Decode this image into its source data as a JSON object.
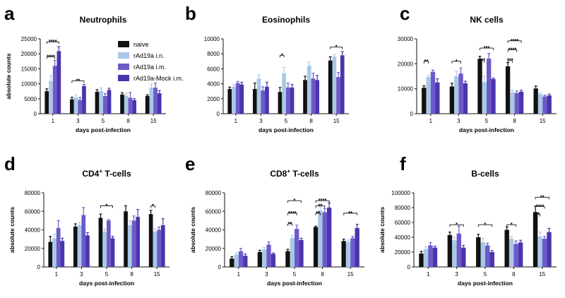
{
  "legend": [
    {
      "name": "naive",
      "color": "#111111"
    },
    {
      "name": "rAd19a i.n.",
      "color": "#a9c8e8"
    },
    {
      "name": "rAd19a i.m.",
      "color": "#6e59c9"
    },
    {
      "name": "rAd19a-Mock i.m.",
      "color": "#4b34ad"
    }
  ],
  "chart_data": [
    {
      "letter": "a",
      "title": "Neutrophils",
      "title_sup": "",
      "title_tail": "",
      "type": "bar",
      "xlabel": "days post-infection",
      "ylabel": "absolute counts",
      "categories": [
        "1",
        "3",
        "5",
        "8",
        "15"
      ],
      "ylim": [
        0,
        25000
      ],
      "yticks": [
        [
          "0",
          0
        ],
        [
          "5000",
          5000
        ],
        [
          "10000",
          10000
        ],
        [
          "15000",
          15000
        ],
        [
          "20000",
          20000
        ],
        [
          "25000",
          25000
        ]
      ],
      "series": [
        {
          "name": "naive",
          "values": [
            7500,
            4800,
            7300,
            6400,
            5900
          ],
          "errors": [
            800,
            700,
            700,
            600,
            400
          ]
        },
        {
          "name": "rAd19a i.n.",
          "values": [
            10900,
            5400,
            7600,
            6000,
            8700
          ],
          "errors": [
            1800,
            900,
            1000,
            800,
            1200
          ]
        },
        {
          "name": "rAd19a i.m.",
          "values": [
            16000,
            4600,
            5900,
            5300,
            8700
          ],
          "errors": [
            1800,
            800,
            800,
            1800,
            1500
          ]
        },
        {
          "name": "rAd19a-Mock i.m.",
          "values": [
            20900,
            9200,
            7900,
            4500,
            6800
          ],
          "errors": [
            1500,
            500,
            600,
            500,
            900
          ]
        }
      ],
      "significance": [
        {
          "from": 0,
          "to": 3,
          "group": 0,
          "y": 24000,
          "label": "****"
        },
        {
          "from": 0,
          "to": 2,
          "group": 0,
          "y": 19000,
          "label": "****"
        },
        {
          "from": 0,
          "to": 3,
          "group": 1,
          "y": 11000,
          "label": "**"
        }
      ]
    },
    {
      "letter": "b",
      "title": "Eosinophils",
      "title_sup": "",
      "title_tail": "",
      "type": "bar",
      "xlabel": "days post-infection",
      "ylabel": "",
      "categories": [
        "1",
        "3",
        "5",
        "8",
        "15"
      ],
      "ylim": [
        0,
        10000
      ],
      "yticks": [
        [
          "0",
          0
        ],
        [
          "2000",
          2000
        ],
        [
          "4000",
          4000
        ],
        [
          "6000",
          6000
        ],
        [
          "8000",
          8000
        ],
        [
          "10000",
          10000
        ]
      ],
      "series": [
        {
          "name": "naive",
          "values": [
            3300,
            3300,
            2900,
            4500,
            7100
          ],
          "errors": [
            250,
            800,
            600,
            500,
            500
          ]
        },
        {
          "name": "rAd19a i.n.",
          "values": [
            3600,
            4700,
            5400,
            6400,
            7600
          ],
          "errors": [
            300,
            500,
            800,
            500,
            300
          ]
        },
        {
          "name": "rAd19a i.m.",
          "values": [
            4100,
            3100,
            3500,
            4700,
            4900
          ],
          "errors": [
            200,
            500,
            600,
            700,
            600
          ]
        },
        {
          "name": "rAd19a-Mock i.m.",
          "values": [
            3900,
            3600,
            3500,
            4500,
            7800
          ],
          "errors": [
            300,
            600,
            400,
            600,
            500
          ]
        }
      ],
      "significance": [
        {
          "from": 0,
          "to": 1,
          "group": 2,
          "y": 7800,
          "label": "*"
        },
        {
          "from": 0,
          "to": 3,
          "group": 4,
          "y": 8900,
          "label": "*"
        }
      ]
    },
    {
      "letter": "c",
      "title": "NK cells",
      "title_sup": "",
      "title_tail": "",
      "type": "bar",
      "xlabel": "days post-infection",
      "ylabel": "",
      "categories": [
        "1",
        "3",
        "5",
        "8",
        "15"
      ],
      "ylim": [
        0,
        30000
      ],
      "yticks": [
        [
          "0",
          0
        ],
        [
          "10000",
          10000
        ],
        [
          "20000",
          20000
        ],
        [
          "30000",
          30000
        ]
      ],
      "series": [
        {
          "name": "naive",
          "values": [
            10400,
            10900,
            22000,
            19000,
            10100
          ],
          "errors": [
            800,
            1300,
            1000,
            1500,
            1000
          ]
        },
        {
          "name": "rAd19a i.n.",
          "values": [
            14700,
            15000,
            12600,
            8500,
            7800
          ],
          "errors": [
            700,
            2000,
            2400,
            1000,
            500
          ]
        },
        {
          "name": "rAd19a i.m.",
          "values": [
            16800,
            16100,
            22100,
            8300,
            6900
          ],
          "errors": [
            700,
            2200,
            2000,
            800,
            500
          ]
        },
        {
          "name": "rAd19a-Mock i.m.",
          "values": [
            12500,
            12200,
            13900,
            8800,
            7300
          ],
          "errors": [
            1500,
            800,
            400,
            600,
            500
          ]
        }
      ],
      "significance": [
        {
          "from": 0,
          "to": 1,
          "group": 0,
          "y": 21000,
          "label": "**"
        },
        {
          "from": 0,
          "to": 2,
          "group": 1,
          "y": 21000,
          "label": "*"
        },
        {
          "from": 0,
          "to": 1,
          "group": 2,
          "y": 21300,
          "label": "***"
        },
        {
          "from": 0,
          "to": 3,
          "group": 2,
          "y": 26300,
          "label": "***"
        },
        {
          "from": 0,
          "to": 1,
          "group": 3,
          "y": 21300,
          "label": "***"
        },
        {
          "from": 0,
          "to": 2,
          "group": 3,
          "y": 25600,
          "label": "****"
        },
        {
          "from": 0,
          "to": 3,
          "group": 3,
          "y": 29200,
          "label": "****"
        }
      ]
    },
    {
      "letter": "d",
      "title": "CD4",
      "title_sup": "+",
      "title_tail": " T-cells",
      "type": "bar",
      "xlabel": "days post-infection",
      "ylabel": "absolute counts",
      "categories": [
        "1",
        "3",
        "5",
        "8",
        "15"
      ],
      "ylim": [
        0,
        80000
      ],
      "yticks": [
        [
          "0",
          0
        ],
        [
          "20000",
          20000
        ],
        [
          "40000",
          40000
        ],
        [
          "60000",
          60000
        ],
        [
          "80000",
          80000
        ]
      ],
      "series": [
        {
          "name": "naive",
          "values": [
            27000,
            43500,
            53000,
            60000,
            57000
          ],
          "errors": [
            6000,
            3000,
            4000,
            6000,
            4000
          ]
        },
        {
          "name": "rAd19a i.n.",
          "values": [
            31000,
            45000,
            38000,
            45000,
            38000
          ],
          "errors": [
            4000,
            3000,
            3000,
            5000,
            3000
          ]
        },
        {
          "name": "rAd19a i.m.",
          "values": [
            42000,
            56000,
            50000,
            50000,
            40000
          ],
          "errors": [
            8000,
            8000,
            1000,
            5000,
            3000
          ]
        },
        {
          "name": "rAd19a-Mock i.m.",
          "values": [
            28000,
            34000,
            31000,
            54000,
            45000
          ],
          "errors": [
            3000,
            3000,
            2000,
            8000,
            7000
          ]
        }
      ],
      "significance": [
        {
          "from": 0,
          "to": 3,
          "group": 2,
          "y": 66000,
          "label": "*"
        },
        {
          "from": 0,
          "to": 1,
          "group": 4,
          "y": 66000,
          "label": "*"
        }
      ]
    },
    {
      "letter": "e",
      "title": "CD8",
      "title_sup": "+",
      "title_tail": " T-cells",
      "type": "bar",
      "xlabel": "days post-infection",
      "ylabel": "absolute counts",
      "categories": [
        "1",
        "3",
        "5",
        "8",
        "15"
      ],
      "ylim": [
        0,
        80000
      ],
      "yticks": [
        [
          "0",
          0
        ],
        [
          "20000",
          20000
        ],
        [
          "40000",
          40000
        ],
        [
          "60000",
          60000
        ],
        [
          "80000",
          80000
        ]
      ],
      "series": [
        {
          "name": "naive",
          "values": [
            9000,
            16000,
            17000,
            43000,
            28000
          ],
          "errors": [
            2000,
            2000,
            2000,
            1000,
            2000
          ]
        },
        {
          "name": "rAd19a i.n.",
          "values": [
            13000,
            19000,
            31000,
            61000,
            27000
          ],
          "errors": [
            2000,
            2000,
            3000,
            4000,
            2000
          ]
        },
        {
          "name": "rAd19a i.m.",
          "values": [
            17000,
            24000,
            41000,
            59000,
            31000
          ],
          "errors": [
            3000,
            3000,
            4000,
            4000,
            2000
          ]
        },
        {
          "name": "rAd19a-Mock i.m.",
          "values": [
            12000,
            14000,
            29000,
            64000,
            42000
          ],
          "errors": [
            2000,
            1000,
            2000,
            5000,
            4000
          ]
        }
      ],
      "significance": [
        {
          "from": 0,
          "to": 1,
          "group": 2,
          "y": 46500,
          "label": "**"
        },
        {
          "from": 0,
          "to": 2,
          "group": 2,
          "y": 58000,
          "label": "****"
        },
        {
          "from": 0,
          "to": 3,
          "group": 2,
          "y": 71500,
          "label": "*"
        },
        {
          "from": 0,
          "to": 1,
          "group": 3,
          "y": 58000,
          "label": "**"
        },
        {
          "from": 0,
          "to": 2,
          "group": 3,
          "y": 66000,
          "label": "**"
        },
        {
          "from": 0,
          "to": 3,
          "group": 3,
          "y": 71500,
          "label": "****"
        },
        {
          "from": 0,
          "to": 3,
          "group": 4,
          "y": 58000,
          "label": "**"
        }
      ]
    },
    {
      "letter": "f",
      "title": "B-cells",
      "title_sup": "",
      "title_tail": "",
      "type": "bar",
      "xlabel": "days post-infection",
      "ylabel": "absolute counts",
      "categories": [
        "1",
        "3",
        "5",
        "8",
        "15"
      ],
      "ylim": [
        0,
        100000
      ],
      "yticks": [
        [
          "0",
          0
        ],
        [
          "20000",
          20000
        ],
        [
          "40000",
          40000
        ],
        [
          "60000",
          60000
        ],
        [
          "80000",
          80000
        ],
        [
          "100000",
          100000
        ]
      ],
      "series": [
        {
          "name": "naive",
          "values": [
            18000,
            43000,
            40000,
            50000,
            74000
          ],
          "errors": [
            3000,
            4000,
            4000,
            4000,
            8000
          ]
        },
        {
          "name": "rAd19a i.n.",
          "values": [
            24000,
            36000,
            33000,
            38000,
            41000
          ],
          "errors": [
            3000,
            4000,
            5000,
            3000,
            6000
          ]
        },
        {
          "name": "rAd19a i.m.",
          "values": [
            29000,
            45000,
            29000,
            31000,
            38000
          ],
          "errors": [
            4000,
            10000,
            3000,
            4000,
            3000
          ]
        },
        {
          "name": "rAd19a-Mock i.m.",
          "values": [
            26000,
            26000,
            20000,
            33000,
            47000
          ],
          "errors": [
            2000,
            3000,
            2000,
            3000,
            5000
          ]
        }
      ],
      "significance": [
        {
          "from": 0,
          "to": 3,
          "group": 1,
          "y": 57000,
          "label": "*"
        },
        {
          "from": 0,
          "to": 3,
          "group": 2,
          "y": 57000,
          "label": "*"
        },
        {
          "from": 0,
          "to": 2,
          "group": 3,
          "y": 57000,
          "label": "*"
        },
        {
          "from": 0,
          "to": 1,
          "group": 4,
          "y": 71000,
          "label": "**"
        },
        {
          "from": 0,
          "to": 2,
          "group": 4,
          "y": 81500,
          "label": "****"
        },
        {
          "from": 0,
          "to": 3,
          "group": 4,
          "y": 94000,
          "label": "**"
        }
      ]
    }
  ]
}
